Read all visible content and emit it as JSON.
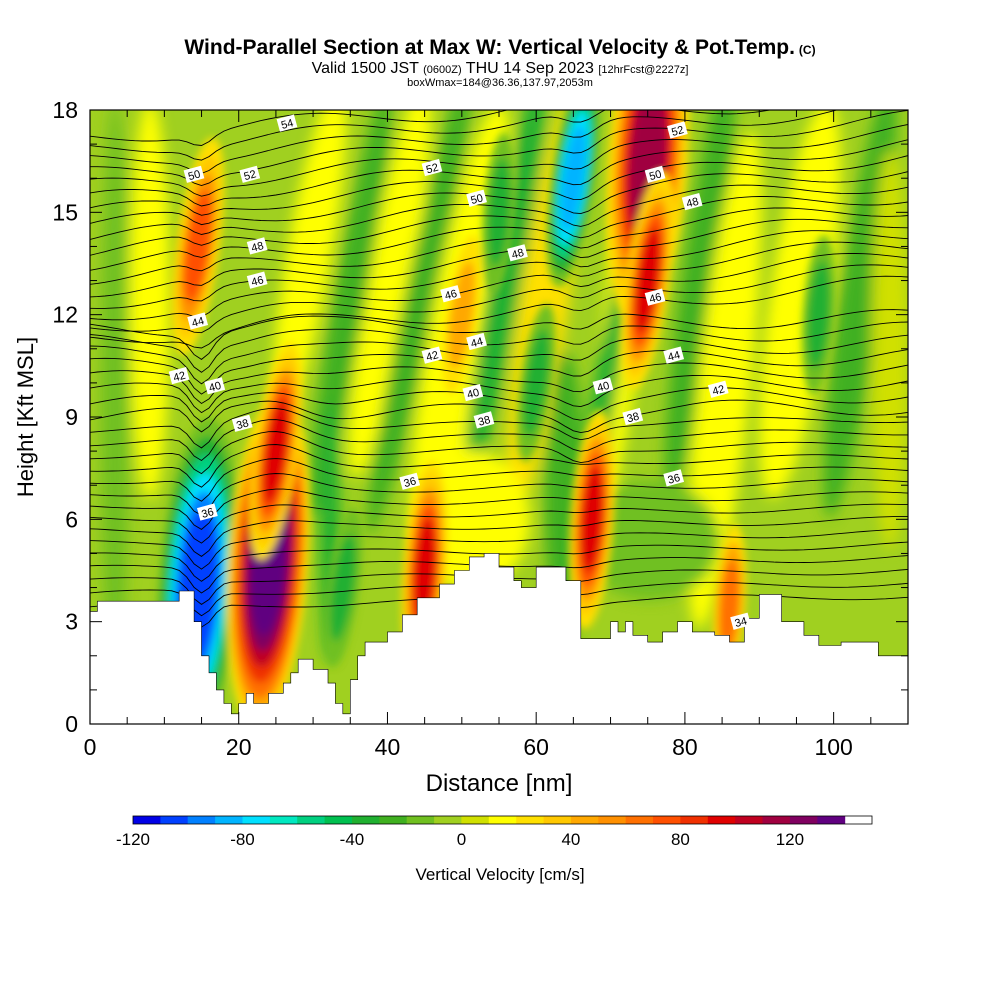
{
  "title": {
    "main": "Wind-Parallel Section at Max W: Vertical Velocity & Pot.Temp.",
    "copyright": "(C)",
    "valid_a": "Valid 1500 JST",
    "valid_z": "(0600Z)",
    "valid_b": "THU 14 Sep 2023",
    "valid_c": "[12hrFcst@2227z]",
    "box": "boxWmax=184@36.36,137.97,2053m"
  },
  "chart_data": {
    "type": "heatmap",
    "xlabel": "Distance [nm]",
    "ylabel": "Height [Kft MSL]",
    "xlim": [
      0,
      110
    ],
    "ylim": [
      0,
      18
    ],
    "x_ticks": [
      0,
      20,
      40,
      60,
      80,
      100
    ],
    "y_ticks": [
      0,
      3,
      6,
      9,
      12,
      15,
      18
    ],
    "colorbar": {
      "label": "Vertical Velocity [cm/s]",
      "range": [
        -120,
        150
      ],
      "step": 10,
      "tick_values": [
        -120,
        -80,
        -40,
        0,
        40,
        80,
        120
      ],
      "colors": [
        "#0000e6",
        "#0040ff",
        "#0080ff",
        "#00b4ff",
        "#00e0ff",
        "#00e8c0",
        "#00d080",
        "#00c050",
        "#20b030",
        "#40b020",
        "#70c020",
        "#a0d020",
        "#d0e000",
        "#ffff00",
        "#ffe000",
        "#ffc800",
        "#ffa800",
        "#ff9000",
        "#ff7000",
        "#ff5000",
        "#f03000",
        "#e00000",
        "#c00020",
        "#a00040",
        "#800060",
        "#600080"
      ]
    },
    "velocity_features": [
      {
        "x": 14.5,
        "y": 4.0,
        "value": -110
      },
      {
        "x": 14.5,
        "y": 14.0,
        "value": 70
      },
      {
        "x": 24.0,
        "y": 4.8,
        "value": 145
      },
      {
        "x": 25.0,
        "y": 8.0,
        "value": 90
      },
      {
        "x": 45.0,
        "y": 4.5,
        "value": 90
      },
      {
        "x": 34.0,
        "y": 4.0,
        "value": -40
      },
      {
        "x": 67.5,
        "y": 6.0,
        "value": 90
      },
      {
        "x": 65.0,
        "y": 16.0,
        "value": -90
      },
      {
        "x": 75.0,
        "y": 16.5,
        "value": 110
      },
      {
        "x": 75.0,
        "y": 13.0,
        "value": 90
      },
      {
        "x": 86.0,
        "y": 3.5,
        "value": 60
      },
      {
        "x": 50.0,
        "y": 12.0,
        "value": 40
      },
      {
        "x": 55.0,
        "y": 15.0,
        "value": -40
      },
      {
        "x": 60.0,
        "y": 10.0,
        "value": -40
      },
      {
        "x": 98.0,
        "y": 12.0,
        "value": -40
      }
    ],
    "terrain_x": [
      0,
      1,
      1,
      12,
      12,
      14,
      14,
      15,
      15,
      16,
      16,
      17,
      17,
      18,
      18,
      19,
      19,
      20,
      20,
      21,
      21,
      22,
      22,
      24,
      24,
      26,
      26,
      27,
      27,
      28,
      28,
      30,
      30,
      32,
      32,
      33,
      33,
      34,
      34,
      35,
      35,
      36,
      36,
      37,
      37,
      40,
      40,
      42,
      42,
      44,
      44,
      47,
      47,
      49,
      49,
      51,
      51,
      53,
      53,
      55,
      55,
      57,
      57,
      58,
      58,
      60,
      60,
      64,
      64,
      66,
      66,
      70,
      70,
      71,
      71,
      72,
      72,
      73,
      73,
      75,
      75,
      77,
      77,
      79,
      79,
      81,
      81,
      84,
      84,
      86,
      86,
      88,
      88,
      90,
      90,
      93,
      93,
      96,
      96,
      98,
      98,
      101,
      101,
      106,
      106,
      110
    ],
    "terrain_y": [
      3.3,
      3.3,
      3.6,
      3.6,
      3.9,
      3.9,
      3.0,
      3.0,
      2.0,
      2.0,
      1.5,
      1.5,
      1.0,
      1.0,
      0.6,
      0.6,
      0.3,
      0.3,
      0.6,
      0.6,
      0.9,
      0.9,
      0.6,
      0.6,
      0.9,
      0.9,
      1.2,
      1.2,
      1.5,
      1.5,
      1.9,
      1.9,
      1.6,
      1.6,
      1.2,
      1.2,
      0.6,
      0.6,
      0.3,
      0.3,
      1.3,
      1.3,
      2.0,
      2.0,
      2.4,
      2.4,
      2.7,
      2.7,
      3.2,
      3.2,
      3.7,
      3.7,
      4.1,
      4.1,
      4.5,
      4.5,
      4.9,
      4.9,
      5.0,
      5.0,
      4.6,
      4.6,
      4.2,
      4.2,
      4.0,
      4.0,
      4.6,
      4.6,
      4.2,
      4.2,
      2.5,
      2.5,
      3.0,
      3.0,
      2.7,
      2.7,
      3.0,
      3.0,
      2.6,
      2.6,
      2.4,
      2.4,
      2.7,
      2.7,
      3.0,
      3.0,
      2.7,
      2.7,
      2.6,
      2.6,
      2.4,
      2.4,
      3.1,
      3.1,
      3.8,
      3.8,
      3.0,
      3.0,
      2.6,
      2.6,
      2.3,
      2.3,
      2.4,
      2.4,
      2.0,
      2.0
    ],
    "theta_labels": [
      {
        "x": 15.8,
        "y": 6.2,
        "text": "36"
      },
      {
        "x": 43.0,
        "y": 7.1,
        "text": "36"
      },
      {
        "x": 78.5,
        "y": 7.2,
        "text": "36"
      },
      {
        "x": 20.5,
        "y": 8.8,
        "text": "38"
      },
      {
        "x": 53.0,
        "y": 8.9,
        "text": "38"
      },
      {
        "x": 73.0,
        "y": 9.0,
        "text": "38"
      },
      {
        "x": 16.8,
        "y": 9.9,
        "text": "40"
      },
      {
        "x": 51.5,
        "y": 9.7,
        "text": "40"
      },
      {
        "x": 69.0,
        "y": 9.9,
        "text": "40"
      },
      {
        "x": 12.0,
        "y": 10.2,
        "text": "42"
      },
      {
        "x": 46.0,
        "y": 10.8,
        "text": "42"
      },
      {
        "x": 84.5,
        "y": 9.8,
        "text": "42"
      },
      {
        "x": 14.5,
        "y": 11.8,
        "text": "44"
      },
      {
        "x": 52.0,
        "y": 11.2,
        "text": "44"
      },
      {
        "x": 78.5,
        "y": 10.8,
        "text": "44"
      },
      {
        "x": 22.5,
        "y": 13.0,
        "text": "46"
      },
      {
        "x": 48.5,
        "y": 12.6,
        "text": "46"
      },
      {
        "x": 76.0,
        "y": 12.5,
        "text": "46"
      },
      {
        "x": 22.5,
        "y": 14.0,
        "text": "48"
      },
      {
        "x": 57.5,
        "y": 13.8,
        "text": "48"
      },
      {
        "x": 81.0,
        "y": 15.3,
        "text": "48"
      },
      {
        "x": 14.0,
        "y": 16.1,
        "text": "50"
      },
      {
        "x": 52.0,
        "y": 15.4,
        "text": "50"
      },
      {
        "x": 76.0,
        "y": 16.1,
        "text": "50"
      },
      {
        "x": 21.5,
        "y": 16.1,
        "text": "52"
      },
      {
        "x": 46.0,
        "y": 16.3,
        "text": "52"
      },
      {
        "x": 79.0,
        "y": 17.4,
        "text": "52"
      },
      {
        "x": 26.5,
        "y": 17.6,
        "text": "54"
      },
      {
        "x": 87.5,
        "y": 3.0,
        "text": "34"
      }
    ]
  }
}
